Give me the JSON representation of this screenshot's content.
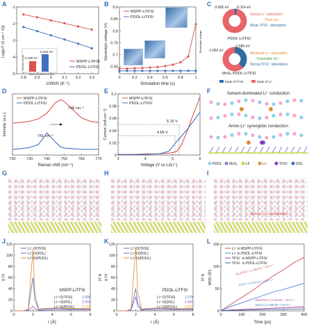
{
  "colors": {
    "mspp": "#d9534f",
    "pdol": "#3f6fc0",
    "label": "#2a6db5",
    "donut_red": "#e8636a",
    "donut_blue": "#2f6ea3"
  },
  "labels": {
    "A": "A",
    "B": "B",
    "C": "C",
    "D": "D",
    "E": "E",
    "F": "F",
    "G": "G",
    "H": "H",
    "I": "I",
    "J": "J",
    "K": "K",
    "L": "L"
  },
  "panelA": {
    "ylabel": "Log[σT (S cm⁻¹ K)]",
    "xlabel": "1000/K (K⁻¹)",
    "legend": [
      "MSPP-LiTFSI",
      "PDOL-LiTFSI"
    ],
    "inset": {
      "v1": "0.185 eV",
      "v2": "0.346 eV",
      "ylabel": "Activation energy",
      "cats": [
        "MSPP-LiTFSI",
        "PDOL-LiTFSI"
      ]
    }
  },
  "panelB": {
    "ylabel": "Electrolyte voltage (V)",
    "xlabel": "Simulation time (s)",
    "legend": [
      "MSPP-LiTFSI",
      "PDOL-LiTFSI"
    ],
    "right_label": "Electrolyte voltage",
    "snap": [
      "0 s",
      "0.4 s",
      "0.7 s",
      "1.0 s"
    ]
  },
  "panelC": {
    "top_title": "PDOL-LiTFSI",
    "bottom_title": "MoS₂-PDOL-LiTFSI",
    "top": {
      "e1": "-3.605 eV",
      "e2": "-0.114 eV",
      "lines": [
        "Strong Li⁺ adsorption",
        "Poor σLi",
        "Weak TFSI⁻ adsorption"
      ]
    },
    "bottom": {
      "e1": "-1.002 eV",
      "e2": "-1.586 eV",
      "lines": [
        "Moderate Li⁺ adsorption",
        "Favorable σLi",
        "Strong TFSI⁻ adsorption"
      ]
    },
    "legend": [
      "Eads of TFSI⁻",
      "Eads of Li⁺"
    ]
  },
  "panelD": {
    "ylabel": "Intensity (a.u.)",
    "xlabel": "Raman shift (cm⁻¹)",
    "legend": [
      "MSPP-LiTFSI",
      "PDOL-LiTFSI"
    ],
    "peak1": "748 cm⁻¹",
    "peak2": "741 cm⁻¹"
  },
  "panelE": {
    "ylabel": "Current (mA cm⁻²)",
    "xlabel": "Voltage (V vs Li/Li⁺)",
    "legend": [
      "MSPP-LiTFSI",
      "PDOL-LiTFSI"
    ],
    "v1": "5.15 V",
    "v2": "4.85 V"
  },
  "panelF": {
    "title1": "Solvent-dominated Li⁺ conduction",
    "title2": "Anion-Li⁺ synergistic conduction",
    "legend": [
      "PDOL",
      "MoS₂",
      "LF",
      "Li⁺",
      "TFSI⁻",
      "DOL"
    ]
  },
  "panelI": {
    "annot": "Anion-Li⁺ coordination"
  },
  "panelJ": {
    "ylabel": "g (r)",
    "ylabel2": "N (r)",
    "xlabel": "r (Å)",
    "legend": [
      "Li⁺-O(TFSI)",
      "Li⁺-O(DOL)",
      "Li⁺-O(PDOL)"
    ],
    "name": "MSPP-LiTFSI",
    "rows": [
      {
        "k": "Li⁺-O(TFSI)",
        "v": "3.995"
      },
      {
        "k": "Li⁺-O(DOL)",
        "v": "0.558"
      },
      {
        "k": "Li⁺-O(PDOL)",
        "v": "2.775"
      }
    ]
  },
  "panelK": {
    "ylabel": "g (r)",
    "ylabel2": "N (r)",
    "xlabel": "r (Å)",
    "legend": [
      "Li⁺-O(TFSI)",
      "Li⁺-O(DOL)",
      "Li⁺-O(PDOL)"
    ],
    "name": "PDOL-LiTFSI",
    "rows": [
      {
        "k": "Li⁺-O(TFSI)",
        "v": "1.578"
      },
      {
        "k": "Li⁺-O(DOL)",
        "v": "0.984"
      },
      {
        "k": "Li⁺-O(PDOL)",
        "v": "2.627"
      }
    ]
  },
  "panelL": {
    "ylabel": "MSD (Å²)",
    "xlabel": "Time (ps)",
    "legend": [
      "Li⁺ in MSPP-LiTFSI",
      "Li⁺ in PDOL-LiTFSI",
      "TFSI⁻ in MSPP-LiTFSI",
      "TFSI⁻ in PDOL-LiTFSI"
    ],
    "d1": "DLi(TFSI⁻)=1.28×10⁻⁷ cm² s⁻¹",
    "d2": "DLi(Li⁺)=6.44×10⁻⁸ cm² s⁻¹",
    "d3": "DLi(TFSI⁻)=1.34×10⁻⁷ cm² s⁻¹",
    "d4": "DLi(Li⁺)=1.28×10⁻⁸ cm² s⁻¹"
  },
  "chart_data": [
    {
      "type": "line",
      "panel": "A",
      "x": [
        2.8,
        2.9,
        3.0,
        3.1,
        3.2,
        3.3
      ],
      "xlim": [
        2.75,
        3.35
      ],
      "ylim": [
        -5.0,
        -1.0
      ],
      "series": [
        {
          "name": "MSPP-LiTFSI",
          "values": [
            -1.45,
            -1.62,
            -1.8,
            -1.98,
            -2.17,
            -2.36
          ]
        },
        {
          "name": "PDOL-LiTFSI",
          "values": [
            -2.2,
            -2.45,
            -2.7,
            -2.95,
            -3.2,
            -3.48
          ]
        }
      ]
    },
    {
      "type": "line",
      "panel": "B",
      "x": [
        0,
        0.1,
        0.2,
        0.3,
        0.4,
        0.5,
        0.6,
        0.7,
        0.8,
        0.9,
        1.0
      ],
      "xlim": [
        0,
        1.0
      ],
      "ylim": [
        0.62,
        0.9
      ],
      "series": [
        {
          "name": "MSPP-LiTFSI",
          "values": [
            0.642,
            0.641,
            0.643,
            0.644,
            0.646,
            0.648,
            0.652,
            0.658,
            0.668,
            0.692,
            0.828
          ]
        },
        {
          "name": "PDOL-LiTFSI",
          "values": [
            0.632,
            0.632,
            0.632,
            0.632,
            0.632,
            0.632,
            0.632,
            0.632,
            0.632,
            0.632,
            0.632
          ]
        }
      ]
    },
    {
      "type": "line",
      "panel": "D",
      "x": [
        720,
        725,
        730,
        735,
        740,
        745,
        748,
        750,
        755,
        760,
        765,
        770
      ],
      "xlim": [
        720,
        770
      ],
      "series": [
        {
          "name": "MSPP-LiTFSI",
          "values": [
            0.55,
            0.56,
            0.58,
            0.62,
            0.72,
            0.9,
            0.95,
            0.92,
            0.78,
            0.64,
            0.58,
            0.56
          ]
        },
        {
          "name": "PDOL-LiTFSI",
          "values": [
            0.1,
            0.11,
            0.13,
            0.18,
            0.38,
            0.22,
            0.14,
            0.12,
            0.11,
            0.1,
            0.1,
            0.1
          ]
        }
      ]
    },
    {
      "type": "line",
      "panel": "E",
      "x": [
        3,
        3.5,
        4,
        4.5,
        4.85,
        5,
        5.15,
        5.3,
        5.5,
        5.7,
        6
      ],
      "xlim": [
        3,
        6
      ],
      "ylim": [
        0,
        0.1
      ],
      "series": [
        {
          "name": "MSPP-LiTFSI",
          "values": [
            0.001,
            0.001,
            0.002,
            0.002,
            0.003,
            0.004,
            0.006,
            0.015,
            0.035,
            0.06,
            0.095
          ]
        },
        {
          "name": "PDOL-LiTFSI",
          "values": [
            0.001,
            0.001,
            0.001,
            0.002,
            0.006,
            0.014,
            0.022,
            0.03,
            0.04,
            0.052,
            0.07
          ]
        }
      ]
    },
    {
      "type": "line",
      "panel": "J",
      "x": [
        0,
        1,
        1.5,
        2,
        2.2,
        2.6,
        3,
        4,
        5,
        6,
        7,
        8
      ],
      "xlim": [
        0,
        8
      ],
      "ylim": [
        0,
        120
      ],
      "series": [
        {
          "name": "Li⁺-O(TFSI)",
          "values": [
            0,
            0,
            2,
            60,
            20,
            2,
            3,
            4,
            4,
            3,
            3,
            3
          ]
        },
        {
          "name": "Li⁺-O(DOL)",
          "values": [
            0,
            0,
            1,
            8,
            4,
            1,
            1,
            2,
            2,
            2,
            2,
            2
          ]
        },
        {
          "name": "Li⁺-O(PDOL)",
          "values": [
            0,
            0,
            3,
            110,
            30,
            3,
            4,
            5,
            5,
            4,
            4,
            4
          ]
        }
      ]
    },
    {
      "type": "line",
      "panel": "K",
      "x": [
        0,
        1,
        1.5,
        2,
        2.2,
        2.6,
        3,
        4,
        5,
        6,
        7,
        8
      ],
      "xlim": [
        0,
        8
      ],
      "ylim": [
        0,
        120
      ],
      "series": [
        {
          "name": "Li⁺-O(TFSI)",
          "values": [
            0,
            0,
            2,
            40,
            15,
            2,
            3,
            4,
            4,
            3,
            3,
            3
          ]
        },
        {
          "name": "Li⁺-O(DOL)",
          "values": [
            0,
            0,
            1,
            25,
            8,
            1,
            2,
            2,
            2,
            2,
            2,
            2
          ]
        },
        {
          "name": "Li⁺-O(PDOL)",
          "values": [
            0,
            0,
            3,
            115,
            35,
            3,
            4,
            5,
            5,
            4,
            4,
            4
          ]
        }
      ]
    },
    {
      "type": "line",
      "panel": "L",
      "x": [
        0,
        50,
        100,
        150,
        200,
        250,
        300,
        350,
        400
      ],
      "xlim": [
        0,
        400
      ],
      "ylim": [
        0,
        150
      ],
      "series": [
        {
          "name": "Li⁺ in MSPP-LiTFSI",
          "values": [
            0,
            15,
            30,
            45,
            62,
            78,
            92,
            108,
            120
          ]
        },
        {
          "name": "Li⁺ in PDOL-LiTFSI",
          "values": [
            0,
            10,
            18,
            26,
            34,
            42,
            48,
            55,
            62
          ]
        },
        {
          "name": "TFSI⁻ in MSPP-LiTFSI",
          "values": [
            0,
            2,
            3,
            4,
            5,
            6,
            7,
            8,
            9
          ]
        },
        {
          "name": "TFSI⁻ in PDOL-LiTFSI",
          "values": [
            0,
            1,
            1.5,
            2,
            2.5,
            3,
            3.5,
            4,
            4.5
          ]
        }
      ]
    }
  ]
}
